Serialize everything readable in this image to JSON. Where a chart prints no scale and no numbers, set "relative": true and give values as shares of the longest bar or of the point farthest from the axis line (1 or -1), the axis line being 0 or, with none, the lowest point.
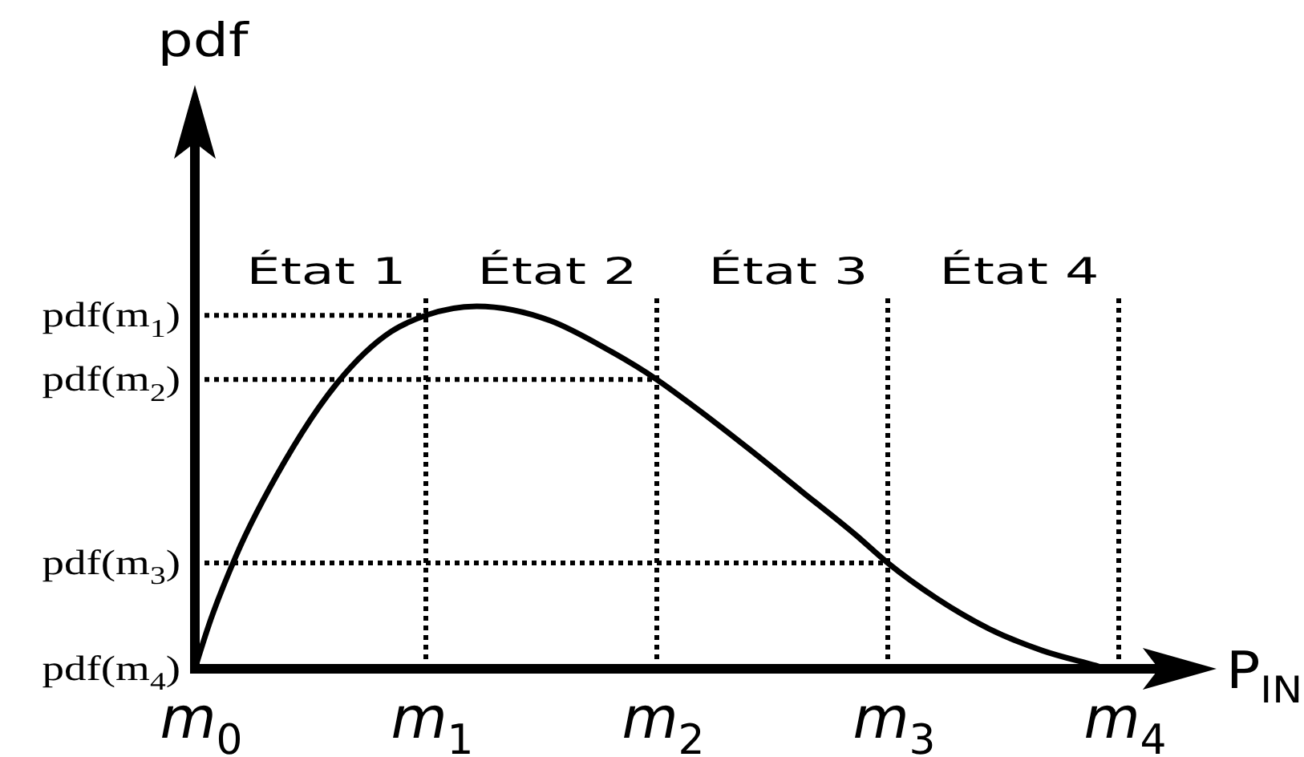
{
  "chart_data": {
    "type": "line",
    "xlabel": "P$_{IN}$",
    "relative": true,
    "x": [
      0,
      0.06,
      0.178,
      0.387,
      0.618,
      0.849,
      1,
      1.22,
      1.54,
      1.775,
      2,
      2.16,
      2.4,
      2.63,
      2.86,
      3,
      3.21,
      3.44,
      3.67,
      3.9,
      3.95,
      4
    ],
    "series": [
      {
        "color": "#000000",
        "values": [
          0,
          0.12,
          0.311,
          0.57,
          0.79,
          0.93,
          0.975,
          1,
          0.96,
          0.885,
          0.798,
          0.724,
          0.606,
          0.488,
          0.37,
          0.292,
          0.195,
          0.11,
          0.05,
          0.009,
          0,
          0
        ]
      }
    ],
    "xlim": [
      0,
      4.34
    ],
    "xticks": [
      {
        "value": 0,
        "label": "m$_{0}$"
      },
      {
        "value": 1,
        "label": "m$_{1}$"
      },
      {
        "value": 2,
        "label": "m$_{2}$"
      },
      {
        "value": 3,
        "label": "m$_{3}$"
      },
      {
        "value": 4,
        "label": "m$_{4}$"
      }
    ],
    "ref_lines": [
      {
        "axis": "x",
        "value": 1,
        "line_style": "dotted"
      },
      {
        "axis": "x",
        "value": 2,
        "line_style": "dotted"
      },
      {
        "axis": "x",
        "value": 3,
        "line_style": "dotted"
      },
      {
        "axis": "x",
        "value": 4,
        "line_style": "dotted"
      }
    ],
    "annotations": [
      "État 1",
      "État 2",
      "État 3",
      "État 4",
      "pdf",
      {
        "text": "pdf(m$_{1}$)",
        "x": 1,
        "y": 0.975
      },
      {
        "text": "pdf(m$_{2}$)",
        "x": 2,
        "y": 0.798
      },
      {
        "text": "pdf(m$_{3}$)",
        "x": 3,
        "y": 0.292
      },
      {
        "text": "pdf(m$_{4}$)",
        "x": 0,
        "y": 0
      }
    ]
  }
}
